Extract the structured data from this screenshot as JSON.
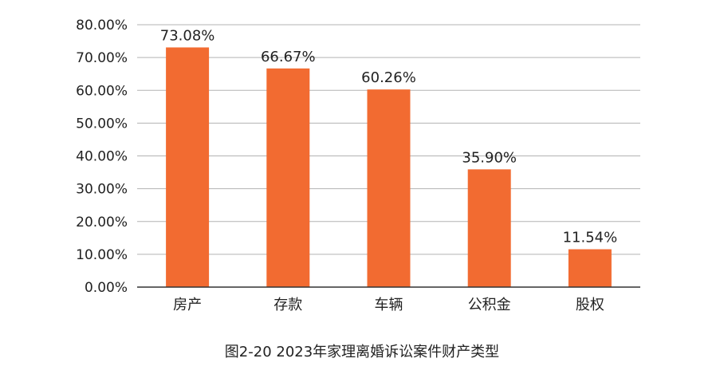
{
  "chart_data": {
    "type": "bar",
    "categories": [
      "房产",
      "存款",
      "车辆",
      "公积金",
      "股权"
    ],
    "values": [
      73.08,
      66.67,
      60.26,
      35.9,
      11.54
    ],
    "data_labels": [
      "73.08%",
      "66.67%",
      "60.26%",
      "35.90%",
      "11.54%"
    ],
    "yticks": [
      "0.00%",
      "10.00%",
      "20.00%",
      "30.00%",
      "40.00%",
      "50.00%",
      "60.00%",
      "70.00%",
      "80.00%"
    ],
    "ylim": [
      0,
      80
    ],
    "grid": true,
    "bar_color": "#f26b31",
    "caption": "图2-20  2023年家理离婚诉讼案件财产类型"
  }
}
